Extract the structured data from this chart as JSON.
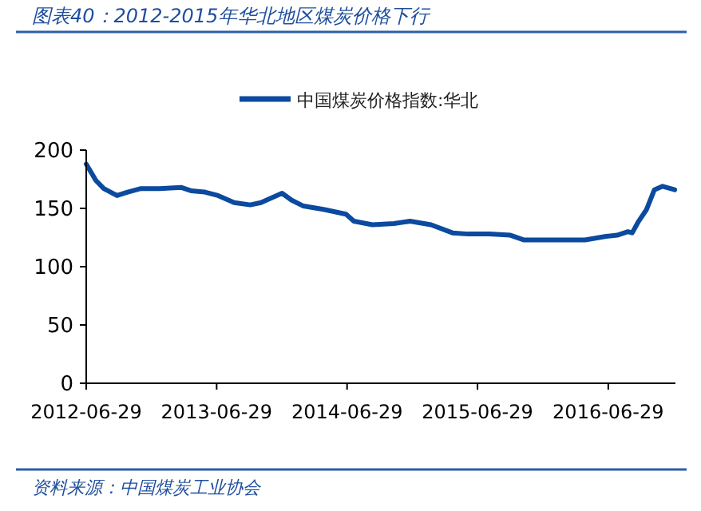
{
  "chart_data": {
    "type": "line",
    "title": "图表40：2012-2015年华北地区煤炭价格下行",
    "annotations": [
      "资料来源：中国煤炭工业协会"
    ],
    "x": [
      "2012-06-29",
      "2012-07-26",
      "2012-08-17",
      "2012-09-23",
      "2012-10-23",
      "2012-11-29",
      "2013-01-20",
      "2013-03-21",
      "2013-04-20",
      "2013-05-27",
      "2013-07-03",
      "2013-08-17",
      "2013-10-01",
      "2013-10-31",
      "2013-12-29",
      "2014-01-25",
      "2014-02-27",
      "2014-04-27",
      "2014-06-26",
      "2014-07-18",
      "2014-09-08",
      "2014-11-07",
      "2014-12-22",
      "2015-02-19",
      "2015-04-20",
      "2015-06-03",
      "2015-08-01",
      "2015-09-29",
      "2015-11-05",
      "2016-01-26",
      "2016-04-25",
      "2016-06-23",
      "2016-07-24",
      "2016-08-23",
      "2016-09-04",
      "2016-09-22",
      "2016-10-14",
      "2016-11-05",
      "2016-11-28",
      "2017-01-01"
    ],
    "series": [
      {
        "name": "中国煤炭价格指数:华北",
        "color": "#0b4a9e",
        "values": [
          188,
          174,
          167,
          161,
          164,
          167,
          167,
          168,
          165,
          164,
          161,
          155,
          153,
          155,
          163,
          157,
          152,
          149,
          145,
          139,
          136,
          137,
          139,
          136,
          129,
          128,
          128,
          127,
          123,
          123,
          123,
          126,
          127,
          130,
          129,
          139,
          149,
          166,
          169,
          166
        ]
      }
    ],
    "xlim": [
      "2012-06-29",
      "2017-01-03"
    ],
    "xticks": [
      "2012-06-29",
      "2013-06-29",
      "2014-06-29",
      "2015-06-29",
      "2016-06-29"
    ],
    "ylim": [
      0,
      200
    ],
    "yticks": [
      0,
      50,
      100,
      150,
      200
    ],
    "grid": false,
    "legend": "top",
    "marker": "none",
    "line_style": "solid"
  }
}
